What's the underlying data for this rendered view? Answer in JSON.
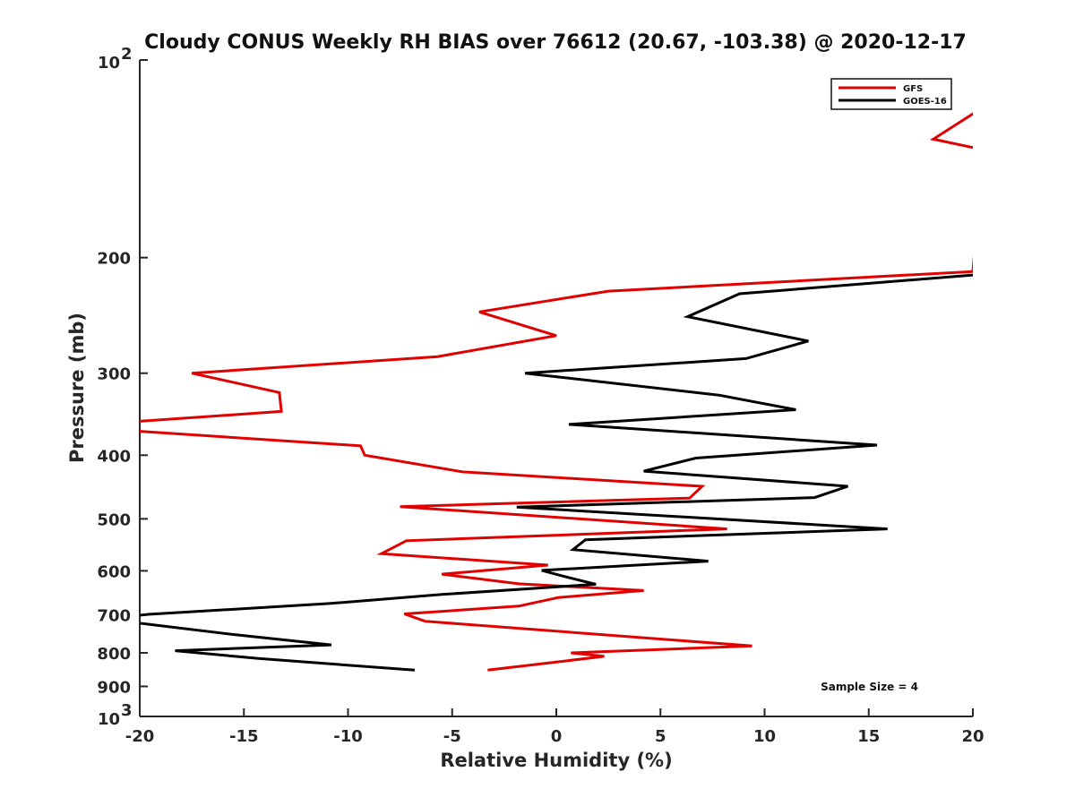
{
  "chart_data": {
    "type": "line",
    "title": "Cloudy CONUS Weekly RH BIAS over 76612 (20.67, -103.38) @ 2020-12-17",
    "xlabel": "Relative Humidity (%)",
    "ylabel": "Pressure (mb)",
    "xlim": [
      -20,
      20
    ],
    "ylim": [
      100,
      1000
    ],
    "yscale": "log",
    "y_reversed": true,
    "x_ticks": [
      -20,
      -15,
      -10,
      -5,
      0,
      5,
      10,
      15,
      20
    ],
    "x_tick_labels": [
      "-20",
      "-15",
      "-10",
      "-5",
      "0",
      "5",
      "10",
      "15",
      "20"
    ],
    "y_ticks": [
      200,
      300,
      400,
      500,
      600,
      700,
      800,
      900
    ],
    "y_tick_labels": [
      "200",
      "300",
      "400",
      "500",
      "600",
      "700",
      "800",
      "900"
    ],
    "y_top_label": {
      "base": "10",
      "exp": "2"
    },
    "y_bottom_label": {
      "base": "10",
      "exp": "3"
    },
    "legend_position": "top-right",
    "annotation": "Sample Size = 4",
    "series": [
      {
        "name": "GFS",
        "color": "#e00000",
        "points": [
          [
            20.5,
            118
          ],
          [
            18.1,
            132
          ],
          [
            20.5,
            137
          ],
          [
            20.0,
            210
          ],
          [
            2.5,
            225
          ],
          [
            -3.7,
            242
          ],
          [
            0.0,
            263
          ],
          [
            -5.7,
            283
          ],
          [
            -17.5,
            300
          ],
          [
            -13.3,
            321
          ],
          [
            -13.2,
            343
          ],
          [
            -20.5,
            356
          ],
          [
            -20.5,
            367
          ],
          [
            -9.4,
            387
          ],
          [
            -9.2,
            400
          ],
          [
            -4.5,
            424
          ],
          [
            7.0,
            446
          ],
          [
            6.4,
            465
          ],
          [
            -7.5,
            479
          ],
          [
            8.2,
            518
          ],
          [
            -7.2,
            540
          ],
          [
            -8.4,
            565
          ],
          [
            -0.4,
            588
          ],
          [
            -5.5,
            607
          ],
          [
            -1.8,
            628
          ],
          [
            4.2,
            643
          ],
          [
            0.1,
            659
          ],
          [
            -1.8,
            679
          ],
          [
            -7.3,
            698
          ],
          [
            -6.3,
            716
          ],
          [
            9.4,
            781
          ],
          [
            0.7,
            800
          ],
          [
            2.3,
            810
          ],
          [
            -3.3,
            850
          ]
        ]
      },
      {
        "name": "GOES-16",
        "color": "#000000",
        "points": [
          [
            20.5,
            212
          ],
          [
            8.8,
            227
          ],
          [
            6.3,
            246
          ],
          [
            12.1,
            268
          ],
          [
            9.1,
            285
          ],
          [
            -1.5,
            300
          ],
          [
            7.8,
            324
          ],
          [
            11.5,
            341
          ],
          [
            0.6,
            359
          ],
          [
            15.4,
            386
          ],
          [
            6.7,
            404
          ],
          [
            4.2,
            423
          ],
          [
            14.0,
            446
          ],
          [
            12.4,
            464
          ],
          [
            -1.9,
            480
          ],
          [
            15.9,
            518
          ],
          [
            1.4,
            538
          ],
          [
            0.8,
            557
          ],
          [
            7.3,
            580
          ],
          [
            -0.7,
            599
          ],
          [
            0.2,
            610
          ],
          [
            1.9,
            629
          ],
          [
            -5.5,
            652
          ],
          [
            -10.9,
            673
          ],
          [
            -19.6,
            699
          ],
          [
            -20.5,
            704
          ],
          [
            -20.5,
            718
          ],
          [
            -15.4,
            751
          ],
          [
            -10.8,
            778
          ],
          [
            -18.3,
            794
          ],
          [
            -14.3,
            816
          ],
          [
            -6.8,
            850
          ]
        ]
      }
    ]
  }
}
